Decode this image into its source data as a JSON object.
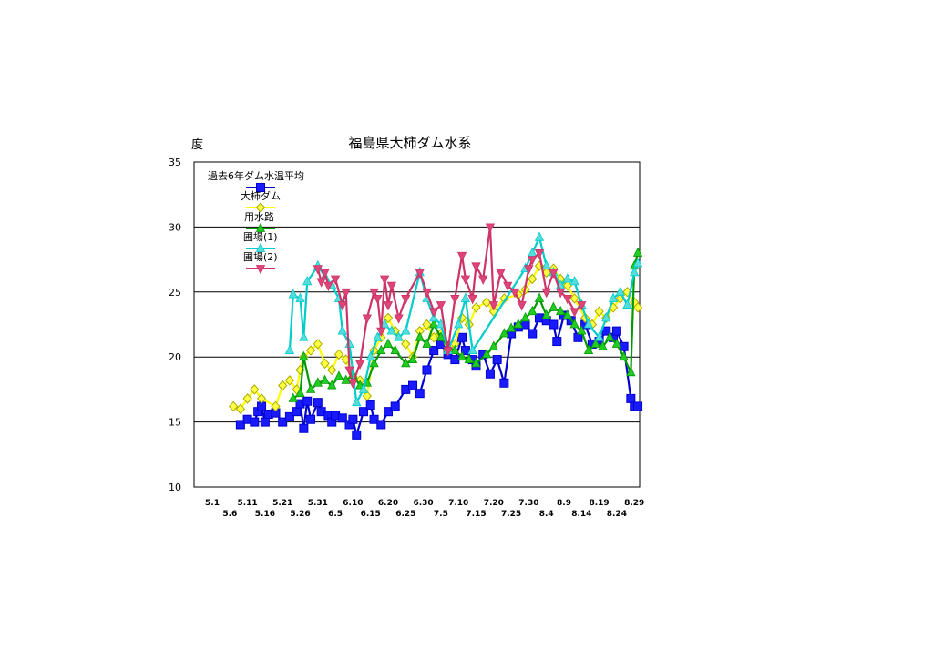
{
  "chart_data": {
    "type": "line",
    "title": "福島県大柿ダム水系",
    "ylabel": "度",
    "ylim": [
      10,
      35
    ],
    "yticks": [
      10,
      15,
      20,
      25,
      30,
      35
    ],
    "grid": "horizontal",
    "legend_position": "top-left",
    "x_tick_labels_top": [
      "5.1",
      "5.11",
      "5.21",
      "5.31",
      "6.10",
      "6.20",
      "6.30",
      "7.10",
      "7.20",
      "7.30",
      "8.9",
      "8.19",
      "8.29"
    ],
    "x_tick_labels_bottom": [
      "5.6",
      "5.16",
      "5.26",
      "6.5",
      "6.15",
      "6.25",
      "7.5",
      "7.15",
      "7.25",
      "8.4",
      "8.14",
      "8.24"
    ],
    "series": [
      {
        "name": "過去6年ダム水温平均",
        "color": "#0000cc",
        "fill": "#1a1aff",
        "marker": "square",
        "points": [
          [
            "5.9",
            14.8
          ],
          [
            "5.11",
            15.2
          ],
          [
            "5.13",
            15.0
          ],
          [
            "5.14",
            15.8
          ],
          [
            "5.15",
            16.2
          ],
          [
            "5.16",
            15.0
          ],
          [
            "5.17",
            15.6
          ],
          [
            "5.19",
            15.7
          ],
          [
            "5.21",
            15.0
          ],
          [
            "5.23",
            15.4
          ],
          [
            "5.25",
            15.8
          ],
          [
            "5.26",
            16.4
          ],
          [
            "5.27",
            14.5
          ],
          [
            "5.28",
            16.6
          ],
          [
            "5.29",
            15.2
          ],
          [
            "5.31",
            16.5
          ],
          [
            "6.1",
            15.8
          ],
          [
            "6.3",
            15.5
          ],
          [
            "6.4",
            15.0
          ],
          [
            "6.5",
            15.5
          ],
          [
            "6.7",
            15.3
          ],
          [
            "6.9",
            14.8
          ],
          [
            "6.10",
            15.2
          ],
          [
            "6.11",
            14.0
          ],
          [
            "6.13",
            15.8
          ],
          [
            "6.15",
            16.3
          ],
          [
            "6.16",
            15.2
          ],
          [
            "6.18",
            14.8
          ],
          [
            "6.20",
            15.8
          ],
          [
            "6.22",
            16.2
          ],
          [
            "6.25",
            17.5
          ],
          [
            "6.27",
            17.8
          ],
          [
            "6.29",
            17.2
          ],
          [
            "7.1",
            19.0
          ],
          [
            "7.3",
            20.5
          ],
          [
            "7.5",
            21.0
          ],
          [
            "7.7",
            20.2
          ],
          [
            "7.9",
            19.8
          ],
          [
            "7.11",
            21.5
          ],
          [
            "7.12",
            20.5
          ],
          [
            "7.14",
            19.8
          ],
          [
            "7.15",
            19.3
          ],
          [
            "7.17",
            20.2
          ],
          [
            "7.19",
            18.7
          ],
          [
            "7.21",
            19.8
          ],
          [
            "7.23",
            18.0
          ],
          [
            "7.25",
            21.8
          ],
          [
            "7.27",
            22.3
          ],
          [
            "7.29",
            22.5
          ],
          [
            "7.31",
            21.8
          ],
          [
            "8.2",
            23.0
          ],
          [
            "8.4",
            22.8
          ],
          [
            "8.6",
            22.5
          ],
          [
            "8.7",
            21.2
          ],
          [
            "8.9",
            23.2
          ],
          [
            "8.11",
            22.8
          ],
          [
            "8.13",
            21.5
          ],
          [
            "8.15",
            22.5
          ],
          [
            "8.17",
            21.0
          ],
          [
            "8.19",
            21.2
          ],
          [
            "8.21",
            22.0
          ],
          [
            "8.23",
            21.5
          ],
          [
            "8.24",
            22.0
          ],
          [
            "8.26",
            20.8
          ],
          [
            "8.28",
            16.8
          ],
          [
            "8.29",
            16.2
          ],
          [
            "8.30",
            16.2
          ]
        ]
      },
      {
        "name": "大柿ダム",
        "color": "#ffff00",
        "fill": "#ffff44",
        "marker": "diamond",
        "points": [
          [
            "5.7",
            16.2
          ],
          [
            "5.9",
            16.0
          ],
          [
            "5.11",
            16.8
          ],
          [
            "5.13",
            17.5
          ],
          [
            "5.15",
            16.8
          ],
          [
            "5.19",
            16.2
          ],
          [
            "5.21",
            17.8
          ],
          [
            "5.23",
            18.2
          ],
          [
            "5.25",
            17.5
          ],
          [
            "5.26",
            19.0
          ],
          [
            "5.27",
            20.0
          ],
          [
            "5.29",
            20.5
          ],
          [
            "5.31",
            21.0
          ],
          [
            "6.2",
            19.5
          ],
          [
            "6.4",
            19.0
          ],
          [
            "6.6",
            20.2
          ],
          [
            "6.8",
            19.8
          ],
          [
            "6.10",
            18.5
          ],
          [
            "6.12",
            18.2
          ],
          [
            "6.14",
            17.0
          ],
          [
            "6.16",
            20.5
          ],
          [
            "6.18",
            21.5
          ],
          [
            "6.20",
            23.0
          ],
          [
            "6.22",
            22.0
          ],
          [
            "6.25",
            21.0
          ],
          [
            "6.27",
            20.0
          ],
          [
            "6.29",
            22.0
          ],
          [
            "7.1",
            22.5
          ],
          [
            "7.3",
            21.5
          ],
          [
            "7.5",
            21.8
          ],
          [
            "7.7",
            20.5
          ],
          [
            "7.9",
            21.0
          ],
          [
            "7.11",
            23.0
          ],
          [
            "7.13",
            22.5
          ],
          [
            "7.15",
            23.8
          ],
          [
            "7.18",
            24.2
          ],
          [
            "7.20",
            23.5
          ],
          [
            "7.23",
            24.5
          ],
          [
            "7.27",
            24.8
          ],
          [
            "7.29",
            25.2
          ],
          [
            "7.31",
            26.0
          ],
          [
            "8.2",
            27.0
          ],
          [
            "8.4",
            26.5
          ],
          [
            "8.6",
            26.8
          ],
          [
            "8.8",
            26.0
          ],
          [
            "8.10",
            25.5
          ],
          [
            "8.12",
            24.5
          ],
          [
            "8.15",
            23.0
          ],
          [
            "8.17",
            22.5
          ],
          [
            "8.19",
            23.5
          ],
          [
            "8.21",
            23.0
          ],
          [
            "8.23",
            23.8
          ],
          [
            "8.25",
            24.5
          ],
          [
            "8.27",
            25.0
          ],
          [
            "8.29",
            24.2
          ],
          [
            "8.30",
            23.8
          ]
        ]
      },
      {
        "name": "用水路",
        "color": "#009900",
        "fill": "#22cc22",
        "marker": "triangle-up",
        "points": [
          [
            "5.24",
            16.8
          ],
          [
            "5.26",
            17.2
          ],
          [
            "5.27",
            20.0
          ],
          [
            "5.29",
            17.5
          ],
          [
            "5.31",
            18.0
          ],
          [
            "6.2",
            18.2
          ],
          [
            "6.4",
            17.8
          ],
          [
            "6.6",
            18.5
          ],
          [
            "6.8",
            18.2
          ],
          [
            "6.10",
            18.6
          ],
          [
            "6.12",
            17.8
          ],
          [
            "6.14",
            18.0
          ],
          [
            "6.16",
            19.5
          ],
          [
            "6.18",
            20.5
          ],
          [
            "6.20",
            21.0
          ],
          [
            "6.22",
            20.5
          ],
          [
            "6.25",
            19.5
          ],
          [
            "6.27",
            19.8
          ],
          [
            "6.29",
            21.5
          ],
          [
            "7.1",
            21.0
          ],
          [
            "7.3",
            22.5
          ],
          [
            "7.5",
            21.5
          ],
          [
            "7.7",
            20.8
          ],
          [
            "7.9",
            20.5
          ],
          [
            "7.11",
            20.0
          ],
          [
            "7.13",
            19.8
          ],
          [
            "7.15",
            19.5
          ],
          [
            "7.18",
            20.2
          ],
          [
            "7.20",
            20.8
          ],
          [
            "7.23",
            21.8
          ],
          [
            "7.25",
            22.2
          ],
          [
            "7.27",
            22.5
          ],
          [
            "7.29",
            23.0
          ],
          [
            "7.31",
            23.5
          ],
          [
            "8.2",
            24.5
          ],
          [
            "8.4",
            23.2
          ],
          [
            "8.6",
            23.8
          ],
          [
            "8.8",
            23.5
          ],
          [
            "8.10",
            23.2
          ],
          [
            "8.12",
            22.5
          ],
          [
            "8.14",
            22.0
          ],
          [
            "8.16",
            20.5
          ],
          [
            "8.18",
            21.0
          ],
          [
            "8.20",
            20.8
          ],
          [
            "8.22",
            21.5
          ],
          [
            "8.24",
            21.0
          ],
          [
            "8.26",
            20.0
          ],
          [
            "8.28",
            18.8
          ],
          [
            "8.29",
            27.0
          ],
          [
            "8.30",
            28.0
          ]
        ]
      },
      {
        "name": "圃場(1)",
        "color": "#00cccc",
        "fill": "#55dddd",
        "marker": "triangle-up",
        "points": [
          [
            "5.23",
            20.5
          ],
          [
            "5.24",
            24.8
          ],
          [
            "5.26",
            24.5
          ],
          [
            "5.27",
            21.5
          ],
          [
            "5.28",
            25.8
          ],
          [
            "5.31",
            27.0
          ],
          [
            "6.2",
            26.2
          ],
          [
            "6.4",
            25.5
          ],
          [
            "6.6",
            24.5
          ],
          [
            "6.7",
            22.0
          ],
          [
            "6.9",
            21.0
          ],
          [
            "6.11",
            16.5
          ],
          [
            "6.13",
            17.5
          ],
          [
            "6.15",
            20.0
          ],
          [
            "6.17",
            21.5
          ],
          [
            "6.19",
            22.5
          ],
          [
            "6.21",
            22.0
          ],
          [
            "6.23",
            21.5
          ],
          [
            "6.25",
            22.0
          ],
          [
            "6.29",
            26.5
          ],
          [
            "7.1",
            24.5
          ],
          [
            "7.3",
            23.0
          ],
          [
            "7.5",
            22.5
          ],
          [
            "7.7",
            20.5
          ],
          [
            "7.10",
            22.5
          ],
          [
            "7.12",
            24.5
          ],
          [
            "7.14",
            20.5
          ],
          [
            "7.29",
            26.8
          ],
          [
            "7.31",
            28.0
          ],
          [
            "8.2",
            29.2
          ],
          [
            "8.4",
            27.0
          ],
          [
            "8.6",
            26.5
          ],
          [
            "8.8",
            25.5
          ],
          [
            "8.10",
            26.0
          ],
          [
            "8.12",
            25.8
          ],
          [
            "8.14",
            24.0
          ],
          [
            "8.16",
            22.5
          ],
          [
            "8.19",
            21.5
          ],
          [
            "8.21",
            23.0
          ],
          [
            "8.23",
            24.5
          ],
          [
            "8.25",
            25.0
          ],
          [
            "8.27",
            24.0
          ],
          [
            "8.29",
            26.5
          ],
          [
            "8.30",
            27.2
          ]
        ]
      },
      {
        "name": "圃場(2)",
        "color": "#cc3366",
        "fill": "#dd4477",
        "marker": "triangle-down",
        "points": [
          [
            "5.31",
            26.8
          ],
          [
            "6.1",
            25.8
          ],
          [
            "6.2",
            26.5
          ],
          [
            "6.3",
            25.5
          ],
          [
            "6.5",
            26.0
          ],
          [
            "6.7",
            24.0
          ],
          [
            "6.8",
            25.0
          ],
          [
            "6.9",
            19.0
          ],
          [
            "6.10",
            18.0
          ],
          [
            "6.12",
            19.5
          ],
          [
            "6.14",
            23.0
          ],
          [
            "6.16",
            25.0
          ],
          [
            "6.17",
            24.5
          ],
          [
            "6.18",
            22.0
          ],
          [
            "6.19",
            26.0
          ],
          [
            "6.20",
            24.0
          ],
          [
            "6.21",
            25.5
          ],
          [
            "6.23",
            23.0
          ],
          [
            "6.25",
            24.5
          ],
          [
            "6.29",
            26.5
          ],
          [
            "7.1",
            25.0
          ],
          [
            "7.3",
            23.5
          ],
          [
            "7.5",
            24.0
          ],
          [
            "7.7",
            20.5
          ],
          [
            "7.9",
            24.5
          ],
          [
            "7.11",
            27.8
          ],
          [
            "7.12",
            26.0
          ],
          [
            "7.14",
            24.5
          ],
          [
            "7.15",
            27.0
          ],
          [
            "7.17",
            26.0
          ],
          [
            "7.19",
            30.0
          ],
          [
            "7.20",
            24.0
          ],
          [
            "7.22",
            26.5
          ],
          [
            "7.24",
            25.5
          ],
          [
            "7.26",
            25.0
          ],
          [
            "7.28",
            24.0
          ],
          [
            "7.30",
            26.8
          ],
          [
            "7.31",
            27.5
          ],
          [
            "8.2",
            28.0
          ],
          [
            "8.4",
            25.0
          ],
          [
            "8.6",
            26.5
          ],
          [
            "8.8",
            25.0
          ],
          [
            "8.10",
            24.5
          ],
          [
            "8.12",
            23.5
          ],
          [
            "8.14",
            24.0
          ]
        ]
      }
    ]
  }
}
